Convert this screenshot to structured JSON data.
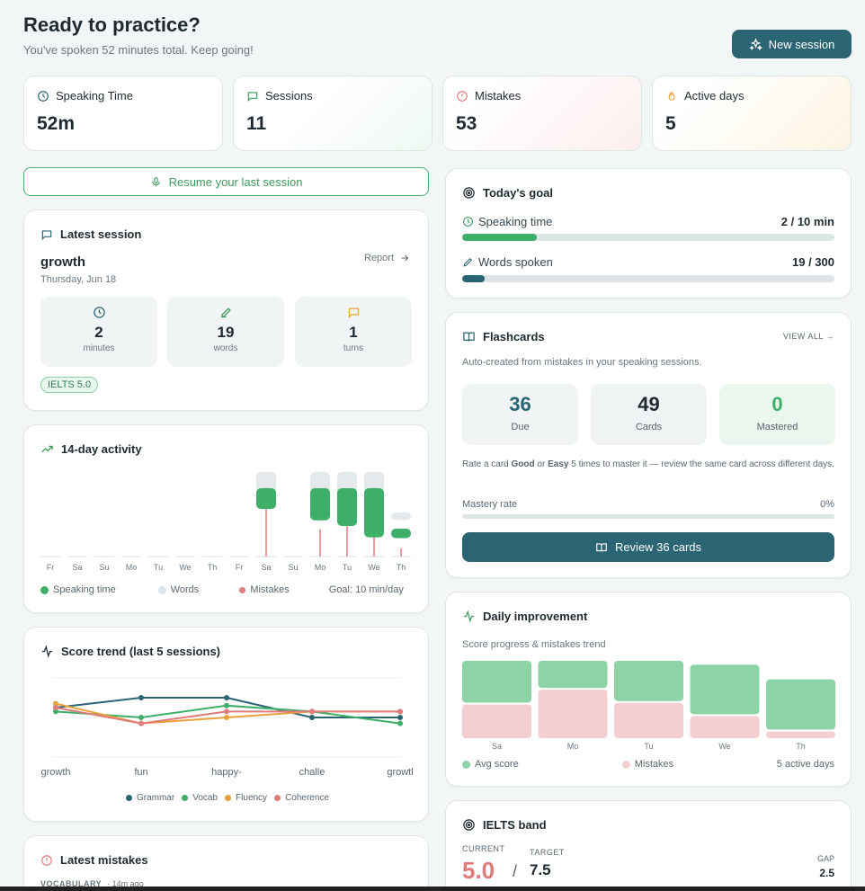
{
  "header": {
    "title": "Ready to practice?",
    "subtitle": "You've spoken 52 minutes total. Keep going!",
    "new_session_label": "New session"
  },
  "stats": [
    {
      "label": "Speaking Time",
      "value": "52m",
      "icon": "clock-icon",
      "color": "#2b6473"
    },
    {
      "label": "Sessions",
      "value": "11",
      "icon": "chat-icon",
      "color": "#3d9b5c"
    },
    {
      "label": "Mistakes",
      "value": "53",
      "icon": "alert-icon",
      "color": "#e07b7b"
    },
    {
      "label": "Active days",
      "value": "5",
      "icon": "flame-icon",
      "color": "#e9a23b"
    }
  ],
  "resume_label": "Resume your last session",
  "latest_session": {
    "heading": "Latest session",
    "name": "growth",
    "date": "Thursday, Jun 18",
    "report_label": "Report",
    "metrics": [
      {
        "value": "2",
        "unit": "minutes",
        "icon": "clock-icon"
      },
      {
        "value": "19",
        "unit": "words",
        "icon": "pencil-icon"
      },
      {
        "value": "1",
        "unit": "turns",
        "icon": "chat-icon"
      }
    ],
    "badge": "IELTS 5.0"
  },
  "activity": {
    "heading": "14-day activity",
    "legend": {
      "speaking": "Speaking time",
      "words": "Words",
      "mistakes": "Mistakes",
      "goal": "Goal: 10 min/day"
    },
    "chart_data": {
      "type": "bar",
      "categories": [
        "Fr",
        "Sa",
        "Su",
        "Mo",
        "Tu",
        "We",
        "Th",
        "Fr",
        "Sa",
        "Su",
        "Mo",
        "Tu",
        "We",
        "Th"
      ],
      "series": [
        {
          "name": "Speaking time",
          "values": [
            0,
            0,
            0,
            0,
            0,
            0,
            0,
            0,
            0.55,
            0,
            0.85,
            1.0,
            1.3,
            0.25
          ]
        },
        {
          "name": "Words",
          "values": [
            0,
            0,
            0,
            0,
            0,
            0,
            0,
            0,
            1.0,
            0,
            1.0,
            1.0,
            1.0,
            0.25
          ]
        },
        {
          "name": "Mistakes",
          "values": [
            0,
            0,
            0,
            0,
            0,
            0,
            0,
            0,
            1.0,
            0,
            0.5,
            0.6,
            0.45,
            0.15
          ]
        }
      ],
      "colors": {
        "speaking": "#3daf68",
        "words": "#e4eaec",
        "mistakes": "#e07b7b"
      }
    }
  },
  "score_trend": {
    "heading": "Score trend (last 5 sessions)",
    "legend": [
      "Grammar",
      "Vocab",
      "Fluency",
      "Coherence"
    ],
    "chart_data": {
      "type": "line",
      "categories": [
        "growth",
        "fun",
        "happy-",
        "challe",
        "growtl"
      ],
      "series": [
        {
          "name": "Grammar",
          "values": [
            5.5,
            6.0,
            6.0,
            5.0,
            5.0
          ],
          "color": "#2b6473"
        },
        {
          "name": "Vocab",
          "values": [
            5.3,
            5.0,
            5.6,
            5.3,
            4.7
          ],
          "color": "#3daf68"
        },
        {
          "name": "Fluency",
          "values": [
            5.7,
            4.7,
            5.0,
            5.3,
            5.3
          ],
          "color": "#e9a23b"
        },
        {
          "name": "Coherence",
          "values": [
            5.5,
            4.7,
            5.3,
            5.3,
            5.3
          ],
          "color": "#e07b7b"
        }
      ],
      "ylim": [
        3,
        7
      ]
    }
  },
  "latest_mistakes": {
    "heading": "Latest mistakes",
    "category": "VOCABULARY",
    "time": "· 14m ago"
  },
  "goal": {
    "heading": "Today's goal",
    "items": [
      {
        "label": "Speaking time",
        "value": "2 / 10 min",
        "progress": 0.2,
        "color": "#3daf68",
        "icon": "clock-icon"
      },
      {
        "label": "Words spoken",
        "value": "19 / 300",
        "progress": 0.06,
        "color": "#2b6473",
        "icon": "pencil-icon"
      }
    ]
  },
  "flashcards": {
    "heading": "Flashcards",
    "view_all": "VIEW ALL →",
    "description": "Auto-created from mistakes in your speaking sessions.",
    "boxes": [
      {
        "value": "36",
        "label": "Due"
      },
      {
        "value": "49",
        "label": "Cards"
      },
      {
        "value": "0",
        "label": "Mastered"
      }
    ],
    "hint_prefix": "Rate a card ",
    "hint_good": "Good",
    "hint_or": " or ",
    "hint_easy": "Easy",
    "hint_suffix": " 5 times to master it — review the same card across different days.",
    "mastery_label": "Mastery rate",
    "mastery_value": "0%",
    "mastery_progress": 0,
    "review_label": "Review 36 cards"
  },
  "daily": {
    "heading": "Daily improvement",
    "subheading": "Score progress & mistakes trend",
    "legend": {
      "avg": "Avg score",
      "mistakes": "Mistakes",
      "active": "5 active days"
    },
    "chart_data": {
      "type": "bar",
      "categories": [
        "Sa",
        "Mo",
        "Tu",
        "We",
        "Th"
      ],
      "series": [
        {
          "name": "Avg score",
          "values": [
            0.54,
            0.35,
            0.52,
            0.64,
            0.65
          ]
        },
        {
          "name": "Mistakes",
          "values": [
            0.46,
            0.65,
            0.48,
            0.31,
            0.11
          ]
        }
      ],
      "colors": {
        "avg": "#8ed3a5",
        "mistakes": "#f4cfd2"
      }
    }
  },
  "ielts": {
    "heading": "IELTS band",
    "current_label": "CURRENT",
    "current": "5.0",
    "sep": "/",
    "target_label": "TARGET",
    "target": "7.5",
    "gap_label": "GAP",
    "gap": "2.5"
  }
}
